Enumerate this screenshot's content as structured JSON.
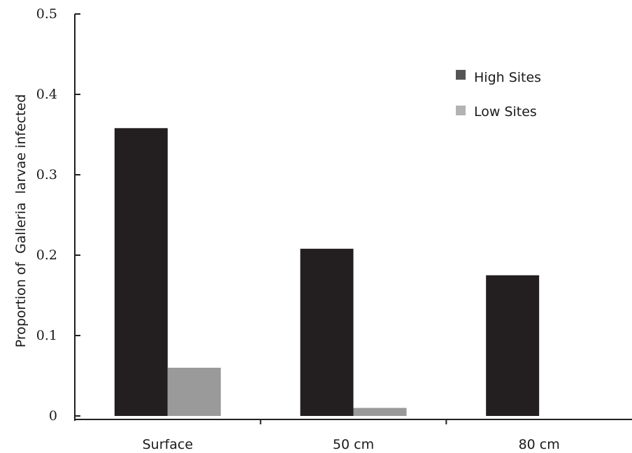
{
  "chart_data": {
    "type": "bar",
    "categories": [
      "Surface",
      "50 cm",
      "80 cm"
    ],
    "series": [
      {
        "name": "High Sites",
        "values": [
          0.358,
          0.208,
          0.175
        ],
        "color": "#231f20"
      },
      {
        "name": "Low Sites",
        "values": [
          0.06,
          0.01,
          0.0
        ],
        "color": "#9a9a9a"
      }
    ],
    "yticks": [
      "0",
      "0.1",
      "0.2",
      "0.3",
      "0.4",
      "0.5"
    ],
    "ylim": [
      0,
      0.5
    ],
    "ylabel": "Proportion of  Galleria  larvae infected",
    "xlabel": "",
    "grid": false,
    "legend_position": "top-right",
    "legend_colors": [
      "#555555",
      "#b3b3b3"
    ]
  }
}
